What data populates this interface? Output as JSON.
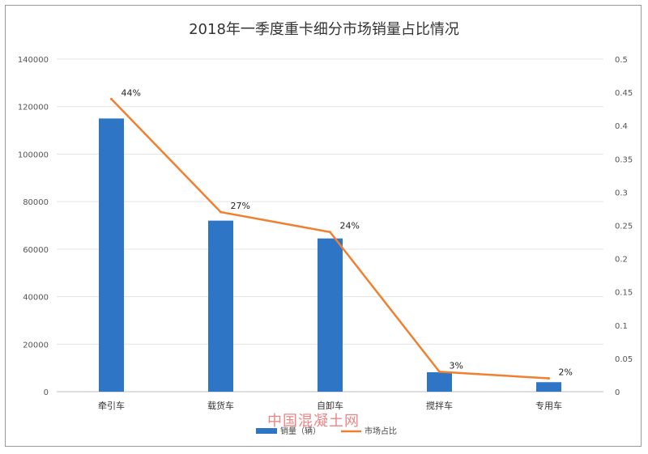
{
  "chart_data": {
    "type": "bar",
    "title": "2018年一季度重卡细分市场销量占比情况",
    "categories": [
      "牵引车",
      "载货车",
      "自卸车",
      "搅拌车",
      "专用车"
    ],
    "series": [
      {
        "name": "销量（辆）",
        "type": "bar",
        "axis": "left",
        "color": "#2e75c6",
        "values": [
          115000,
          72000,
          64500,
          8200,
          4000
        ]
      },
      {
        "name": "市场占比",
        "type": "line",
        "axis": "right",
        "color": "#f08030",
        "values": [
          0.44,
          0.27,
          0.24,
          0.03,
          0.02
        ]
      }
    ],
    "data_labels": [
      "44%",
      "27%",
      "24%",
      "3%",
      "2%"
    ],
    "y_left": {
      "ylim": [
        0,
        140000
      ],
      "ticks": [
        "0",
        "20000",
        "40000",
        "60000",
        "80000",
        "100000",
        "120000",
        "140000"
      ]
    },
    "y_right": {
      "ylim": [
        0,
        0.5
      ],
      "ticks": [
        "0",
        "0.05",
        "0.1",
        "0.15",
        "0.2",
        "0.25",
        "0.3",
        "0.35",
        "0.4",
        "0.45",
        "0.5"
      ]
    },
    "grid": true,
    "legend": "bottom"
  },
  "watermark": "中国混凝土网"
}
